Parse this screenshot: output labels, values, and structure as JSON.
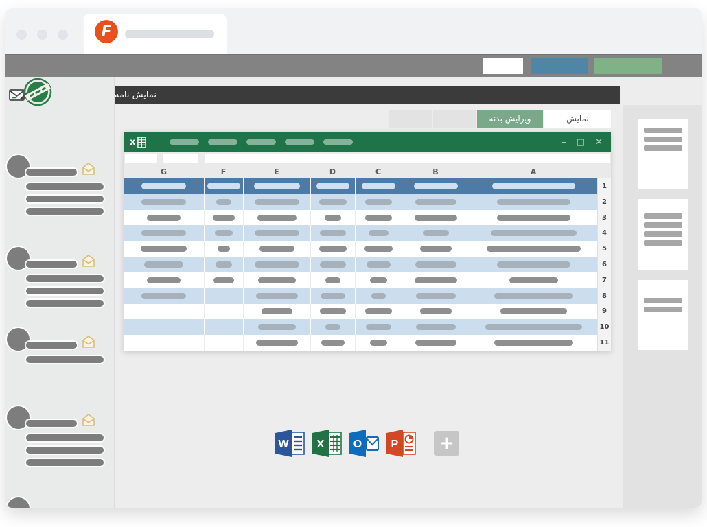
{
  "browser": {
    "logo_letter": "F"
  },
  "toolbar": {
    "buttons": [
      {
        "name": "white",
        "color": "#ffffff"
      },
      {
        "name": "blue",
        "color": "#4d87a5"
      },
      {
        "name": "green",
        "color": "#7fb287"
      }
    ]
  },
  "header": {
    "title": "نمایش نامه"
  },
  "tabs": [
    {
      "label": "نمایش",
      "style": "active-white"
    },
    {
      "label": "ویرایش بدنه",
      "style": "green"
    },
    {
      "label": "",
      "style": "placeholder"
    },
    {
      "label": "",
      "style": "placeholder"
    }
  ],
  "excel": {
    "titlebar": {
      "app_letter": "x",
      "menu_pills": 5,
      "controls": [
        "–",
        "□",
        "✕"
      ]
    },
    "columns": [
      "G",
      "F",
      "E",
      "D",
      "C",
      "B",
      "A"
    ],
    "row_numbers": [
      "1",
      "2",
      "3",
      "4",
      "5",
      "6",
      "7",
      "8",
      "9",
      "10",
      "11"
    ],
    "rows": [
      {
        "style": "header",
        "bars": [
          55,
          85,
          70,
          75,
          72,
          66,
          65
        ]
      },
      {
        "style": "blue",
        "bars": [
          55,
          38,
          68,
          62,
          58,
          62,
          58
        ]
      },
      {
        "style": "white",
        "bars": [
          42,
          58,
          58,
          38,
          58,
          64,
          58
        ]
      },
      {
        "style": "blue",
        "bars": [
          55,
          48,
          66,
          58,
          42,
          38,
          68
        ]
      },
      {
        "style": "white",
        "bars": [
          58,
          32,
          52,
          64,
          62,
          46,
          74
        ]
      },
      {
        "style": "blue",
        "bars": [
          48,
          42,
          66,
          58,
          52,
          62,
          58
        ]
      },
      {
        "style": "white",
        "bars": [
          42,
          52,
          56,
          34,
          38,
          64,
          38
        ]
      },
      {
        "style": "blue",
        "bars": [
          55,
          0,
          62,
          56,
          32,
          60,
          62
        ]
      },
      {
        "style": "white",
        "bars": [
          0,
          0,
          46,
          58,
          58,
          46,
          52
        ]
      },
      {
        "style": "blue",
        "bars": [
          0,
          0,
          56,
          34,
          56,
          60,
          76
        ]
      },
      {
        "style": "white",
        "bars": [
          0,
          0,
          62,
          52,
          38,
          62,
          62
        ]
      }
    ]
  },
  "office_apps": [
    {
      "name": "word",
      "letter": "W",
      "color": "#2b579a",
      "page": "lines"
    },
    {
      "name": "excel",
      "letter": "X",
      "color": "#217346",
      "page": "grid"
    },
    {
      "name": "outlook",
      "letter": "O",
      "color": "#0f6cbd",
      "page": "envelope"
    },
    {
      "name": "powerpoint",
      "letter": "P",
      "color": "#d24726",
      "page": "pie"
    }
  ],
  "add_app_label": "+",
  "sidebar": {
    "items": [
      {
        "lines": 3
      },
      {
        "lines": 3
      },
      {
        "lines": 1
      },
      {
        "lines": 3
      },
      {
        "lines": 0
      }
    ]
  },
  "pages_panel": {
    "thumbnails": [
      {
        "lines": 3
      },
      {
        "lines": 4
      },
      {
        "lines": 2
      }
    ]
  },
  "colors": {
    "excel_green": "#1f7348",
    "header_row_blue": "#4e7ba6",
    "row_blue": "#ccdded",
    "tab_green": "#7aa98a",
    "toolbar_gray": "#838383",
    "logo_orange": "#e8511e",
    "stamp_green": "#2a7d46"
  }
}
